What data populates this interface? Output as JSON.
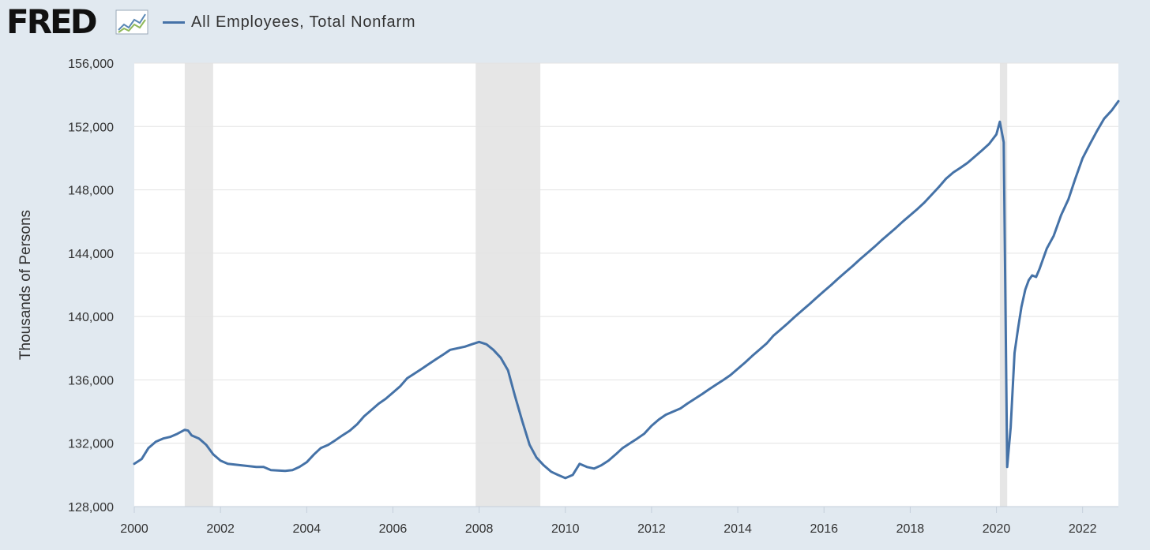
{
  "header": {
    "logo_text": "FRED",
    "logo_icon": "line-chart-icon",
    "legend_label": "All Employees, Total Nonfarm",
    "series_color": "#4572a7"
  },
  "chart_data": {
    "type": "line",
    "title": "",
    "xlabel": "",
    "ylabel": "Thousands of Persons",
    "xlim": [
      2000.0,
      2022.83
    ],
    "ylim": [
      128000,
      156000
    ],
    "x_ticks": [
      "2000",
      "2002",
      "2004",
      "2006",
      "2008",
      "2010",
      "2012",
      "2014",
      "2016",
      "2018",
      "2020",
      "2022"
    ],
    "y_ticks": [
      "128,000",
      "132,000",
      "136,000",
      "140,000",
      "144,000",
      "148,000",
      "152,000",
      "156,000"
    ],
    "grid": true,
    "legend_position": "top-left",
    "recessions": [
      [
        2001.17,
        2001.83
      ],
      [
        2007.92,
        2009.42
      ],
      [
        2020.08,
        2020.25
      ]
    ],
    "series": [
      {
        "name": "All Employees, Total Nonfarm",
        "color": "#4572a7",
        "points": [
          [
            2000.0,
            130700
          ],
          [
            2000.17,
            131000
          ],
          [
            2000.33,
            131700
          ],
          [
            2000.5,
            132100
          ],
          [
            2000.67,
            132300
          ],
          [
            2000.83,
            132400
          ],
          [
            2001.0,
            132600
          ],
          [
            2001.17,
            132850
          ],
          [
            2001.25,
            132800
          ],
          [
            2001.33,
            132500
          ],
          [
            2001.5,
            132300
          ],
          [
            2001.67,
            131900
          ],
          [
            2001.83,
            131300
          ],
          [
            2002.0,
            130900
          ],
          [
            2002.17,
            130700
          ],
          [
            2002.5,
            130600
          ],
          [
            2002.83,
            130500
          ],
          [
            2003.0,
            130500
          ],
          [
            2003.17,
            130300
          ],
          [
            2003.5,
            130250
          ],
          [
            2003.67,
            130300
          ],
          [
            2003.83,
            130500
          ],
          [
            2004.0,
            130800
          ],
          [
            2004.17,
            131300
          ],
          [
            2004.33,
            131700
          ],
          [
            2004.5,
            131900
          ],
          [
            2004.67,
            132200
          ],
          [
            2004.83,
            132500
          ],
          [
            2005.0,
            132800
          ],
          [
            2005.17,
            133200
          ],
          [
            2005.33,
            133700
          ],
          [
            2005.5,
            134100
          ],
          [
            2005.67,
            134500
          ],
          [
            2005.83,
            134800
          ],
          [
            2006.0,
            135200
          ],
          [
            2006.17,
            135600
          ],
          [
            2006.33,
            136100
          ],
          [
            2006.5,
            136400
          ],
          [
            2006.67,
            136700
          ],
          [
            2006.83,
            137000
          ],
          [
            2007.0,
            137300
          ],
          [
            2007.17,
            137600
          ],
          [
            2007.33,
            137900
          ],
          [
            2007.5,
            138000
          ],
          [
            2007.67,
            138100
          ],
          [
            2007.83,
            138250
          ],
          [
            2008.0,
            138400
          ],
          [
            2008.17,
            138250
          ],
          [
            2008.33,
            137900
          ],
          [
            2008.5,
            137400
          ],
          [
            2008.67,
            136600
          ],
          [
            2008.83,
            135000
          ],
          [
            2009.0,
            133400
          ],
          [
            2009.17,
            131900
          ],
          [
            2009.33,
            131100
          ],
          [
            2009.5,
            130600
          ],
          [
            2009.67,
            130200
          ],
          [
            2009.83,
            130000
          ],
          [
            2010.0,
            129800
          ],
          [
            2010.17,
            130000
          ],
          [
            2010.33,
            130700
          ],
          [
            2010.5,
            130500
          ],
          [
            2010.67,
            130400
          ],
          [
            2010.83,
            130600
          ],
          [
            2011.0,
            130900
          ],
          [
            2011.17,
            131300
          ],
          [
            2011.33,
            131700
          ],
          [
            2011.5,
            132000
          ],
          [
            2011.67,
            132300
          ],
          [
            2011.83,
            132600
          ],
          [
            2012.0,
            133100
          ],
          [
            2012.17,
            133500
          ],
          [
            2012.33,
            133800
          ],
          [
            2012.5,
            134000
          ],
          [
            2012.67,
            134200
          ],
          [
            2012.83,
            134500
          ],
          [
            2013.0,
            134800
          ],
          [
            2013.17,
            135100
          ],
          [
            2013.33,
            135400
          ],
          [
            2013.5,
            135700
          ],
          [
            2013.67,
            136000
          ],
          [
            2013.83,
            136300
          ],
          [
            2014.0,
            136700
          ],
          [
            2014.17,
            137100
          ],
          [
            2014.33,
            137500
          ],
          [
            2014.5,
            137900
          ],
          [
            2014.67,
            138300
          ],
          [
            2014.83,
            138800
          ],
          [
            2015.0,
            139200
          ],
          [
            2015.17,
            139600
          ],
          [
            2015.33,
            140000
          ],
          [
            2015.5,
            140400
          ],
          [
            2015.67,
            140800
          ],
          [
            2015.83,
            141200
          ],
          [
            2016.0,
            141600
          ],
          [
            2016.17,
            142000
          ],
          [
            2016.33,
            142400
          ],
          [
            2016.5,
            142800
          ],
          [
            2016.67,
            143200
          ],
          [
            2016.83,
            143600
          ],
          [
            2017.0,
            144000
          ],
          [
            2017.17,
            144400
          ],
          [
            2017.33,
            144800
          ],
          [
            2017.5,
            145200
          ],
          [
            2017.67,
            145600
          ],
          [
            2017.83,
            146000
          ],
          [
            2018.0,
            146400
          ],
          [
            2018.17,
            146800
          ],
          [
            2018.33,
            147200
          ],
          [
            2018.5,
            147700
          ],
          [
            2018.67,
            148200
          ],
          [
            2018.83,
            148700
          ],
          [
            2019.0,
            149100
          ],
          [
            2019.17,
            149400
          ],
          [
            2019.33,
            149700
          ],
          [
            2019.5,
            150100
          ],
          [
            2019.67,
            150500
          ],
          [
            2019.83,
            150900
          ],
          [
            2020.0,
            151500
          ],
          [
            2020.08,
            152300
          ],
          [
            2020.17,
            151000
          ],
          [
            2020.25,
            130500
          ],
          [
            2020.33,
            133000
          ],
          [
            2020.42,
            137700
          ],
          [
            2020.5,
            139200
          ],
          [
            2020.58,
            140600
          ],
          [
            2020.67,
            141700
          ],
          [
            2020.75,
            142300
          ],
          [
            2020.83,
            142600
          ],
          [
            2020.92,
            142500
          ],
          [
            2021.0,
            143000
          ],
          [
            2021.17,
            144300
          ],
          [
            2021.33,
            145100
          ],
          [
            2021.5,
            146400
          ],
          [
            2021.67,
            147400
          ],
          [
            2021.83,
            148700
          ],
          [
            2022.0,
            150000
          ],
          [
            2022.17,
            150900
          ],
          [
            2022.33,
            151700
          ],
          [
            2022.5,
            152500
          ],
          [
            2022.67,
            153000
          ],
          [
            2022.83,
            153600
          ]
        ]
      }
    ]
  }
}
